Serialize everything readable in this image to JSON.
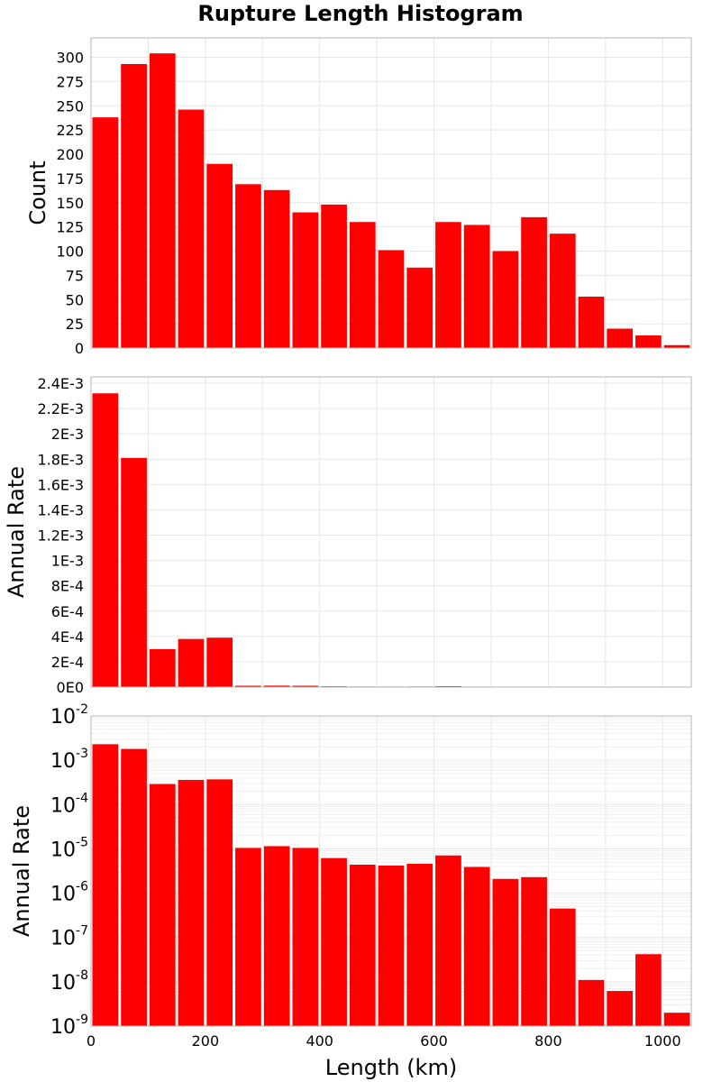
{
  "chart_data": {
    "type": "bar",
    "title": "Rupture Length Histogram",
    "xlabel": "Length (km)",
    "xlim": [
      0,
      1050
    ],
    "bin_width": 50,
    "bin_centers": [
      25,
      75,
      125,
      175,
      225,
      275,
      325,
      375,
      425,
      475,
      525,
      575,
      625,
      675,
      725,
      775,
      825,
      875,
      925,
      975,
      1025
    ],
    "x_ticks": [
      "0",
      "200",
      "400",
      "600",
      "800",
      "1000"
    ],
    "x_tick_values": [
      0,
      200,
      400,
      600,
      800,
      1000
    ],
    "panels": [
      {
        "ylabel": "Count",
        "scale": "linear",
        "ylim": [
          0,
          320
        ],
        "y_ticks": [
          "0",
          "25",
          "50",
          "75",
          "100",
          "125",
          "150",
          "175",
          "200",
          "225",
          "250",
          "275",
          "300"
        ],
        "y_tick_values": [
          0,
          25,
          50,
          75,
          100,
          125,
          150,
          175,
          200,
          225,
          250,
          275,
          300
        ],
        "values": [
          238,
          293,
          304,
          246,
          190,
          169,
          163,
          140,
          148,
          130,
          101,
          83,
          130,
          127,
          100,
          135,
          118,
          53,
          20,
          13,
          3
        ]
      },
      {
        "ylabel": "Annual Rate",
        "scale": "linear",
        "ylim": [
          0,
          0.00245
        ],
        "y_ticks": [
          "0E0",
          "2E-4",
          "4E-4",
          "6E-4",
          "8E-4",
          "1E-3",
          "1.2E-3",
          "1.4E-3",
          "1.6E-3",
          "1.8E-3",
          "2E-3",
          "2.2E-3",
          "2.4E-3"
        ],
        "y_tick_values": [
          0,
          0.0002,
          0.0004,
          0.0006,
          0.0008,
          0.001,
          0.0012,
          0.0014,
          0.0016,
          0.0018,
          0.002,
          0.0022,
          0.0024
        ],
        "values": [
          0.00232,
          0.00181,
          0.0003,
          0.00038,
          0.00039,
          1.05e-05,
          1.15e-05,
          1.05e-05,
          6.2e-06,
          4.4e-06,
          4.2e-06,
          4.6e-06,
          7.1e-06,
          3.9e-06,
          2.1e-06,
          2.3e-06,
          4.5e-07,
          1.1e-08,
          6.2e-09,
          4.2e-08,
          2e-09
        ]
      },
      {
        "ylabel": "Annual Rate",
        "scale": "log",
        "ylim": [
          1e-09,
          0.01
        ],
        "y_ticks": [
          {
            "base": "10",
            "exp": "-9"
          },
          {
            "base": "10",
            "exp": "-8"
          },
          {
            "base": "10",
            "exp": "-7"
          },
          {
            "base": "10",
            "exp": "-6"
          },
          {
            "base": "10",
            "exp": "-5"
          },
          {
            "base": "10",
            "exp": "-4"
          },
          {
            "base": "10",
            "exp": "-3"
          },
          {
            "base": "10",
            "exp": "-2"
          }
        ],
        "y_tick_values": [
          1e-09,
          1e-08,
          1e-07,
          1e-06,
          1e-05,
          0.0001,
          0.001,
          0.01
        ],
        "values": [
          0.0023,
          0.0018,
          0.00029,
          0.00036,
          0.00037,
          1.05e-05,
          1.15e-05,
          1.05e-05,
          6.2e-06,
          4.4e-06,
          4.2e-06,
          4.6e-06,
          7.1e-06,
          3.9e-06,
          2.1e-06,
          2.3e-06,
          4.5e-07,
          1.1e-08,
          6.2e-09,
          4.2e-08,
          2e-09
        ]
      }
    ],
    "bar_color": "#ff0000",
    "grid": true
  }
}
